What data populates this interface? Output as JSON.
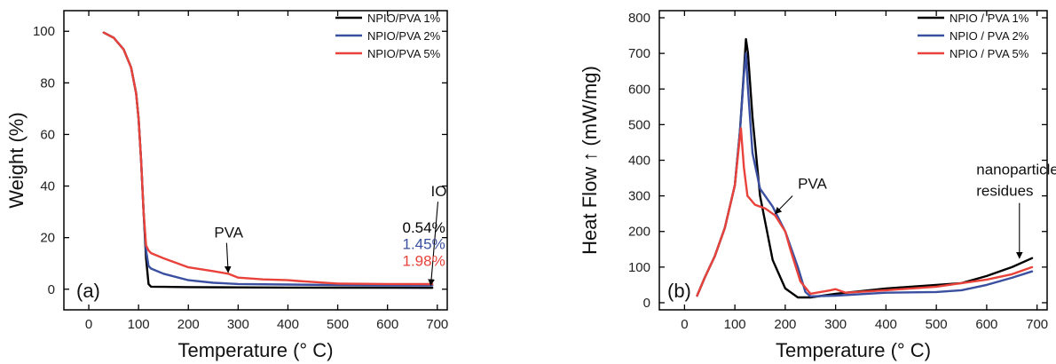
{
  "chart_data": [
    {
      "type": "line",
      "panel_label": "(a)",
      "xlabel": "Temperature (° C)",
      "ylabel": "Weight (%)",
      "xlim": [
        -50,
        720
      ],
      "ylim": [
        -8,
        108
      ],
      "xticks": [
        0,
        100,
        200,
        300,
        400,
        500,
        600,
        700
      ],
      "yticks": [
        0,
        20,
        40,
        60,
        80,
        100
      ],
      "legend_position": "top-right",
      "series": [
        {
          "name": "NPIO/PVA 1%",
          "color": "#000000",
          "x": [
            30,
            50,
            70,
            85,
            95,
            100,
            105,
            110,
            115,
            120,
            125,
            150,
            200,
            300,
            400,
            500,
            600,
            690
          ],
          "y": [
            99.5,
            97.5,
            93,
            86,
            76,
            66,
            50,
            30,
            12,
            2,
            1,
            0.9,
            0.8,
            0.7,
            0.65,
            0.6,
            0.56,
            0.54
          ]
        },
        {
          "name": "NPIO/PVA 2%",
          "color": "#3a4fa0",
          "x": [
            30,
            50,
            70,
            85,
            95,
            100,
            105,
            110,
            115,
            120,
            125,
            150,
            200,
            250,
            300,
            400,
            500,
            600,
            690
          ],
          "y": [
            99.5,
            97.5,
            93,
            86,
            76,
            66,
            50,
            30,
            15,
            9,
            8,
            6,
            3.5,
            2.5,
            2,
            1.8,
            1.6,
            1.5,
            1.45
          ]
        },
        {
          "name": "NPIO/PVA 5%",
          "color": "#e8423a",
          "x": [
            30,
            50,
            70,
            85,
            95,
            100,
            105,
            110,
            115,
            120,
            125,
            150,
            200,
            250,
            280,
            300,
            350,
            400,
            420,
            450,
            500,
            600,
            690
          ],
          "y": [
            99.5,
            97.5,
            93,
            86,
            76,
            66,
            50,
            30,
            17,
            15,
            14,
            12,
            8.5,
            7,
            6,
            4.5,
            3.8,
            3.5,
            3.2,
            2.8,
            2.2,
            2.0,
            1.98
          ]
        }
      ],
      "annotations": [
        {
          "text": "PVA",
          "x": 284,
          "y": 20,
          "arrow_to": [
            280,
            6.5
          ]
        },
        {
          "text": "IO",
          "x": 687,
          "y": 36,
          "arrow_to": [
            687,
            1.5
          ]
        },
        {
          "text": "0.54%",
          "x": 630,
          "y": 22,
          "color": "#000000"
        },
        {
          "text": "1.45%",
          "x": 630,
          "y": 15.5,
          "color": "#3a4fa0"
        },
        {
          "text": "1.98%",
          "x": 630,
          "y": 9,
          "color": "#e8423a"
        }
      ]
    },
    {
      "type": "line",
      "panel_label": "(b)",
      "xlabel": "Temperature (° C)",
      "ylabel": "Heat Flow ↑ (mW/mg)",
      "xlim": [
        -50,
        720
      ],
      "ylim": [
        -20,
        820
      ],
      "xticks": [
        0,
        100,
        200,
        300,
        400,
        500,
        600,
        700
      ],
      "yticks": [
        0,
        100,
        200,
        300,
        400,
        500,
        600,
        700,
        800
      ],
      "legend_position": "top-right",
      "series": [
        {
          "name": "NPIO / PVA 1%",
          "color": "#000000",
          "x": [
            25,
            40,
            60,
            80,
            100,
            110,
            118,
            122,
            126,
            135,
            150,
            175,
            200,
            225,
            250,
            300,
            400,
            500,
            550,
            600,
            650,
            690
          ],
          "y": [
            20,
            70,
            130,
            210,
            330,
            480,
            650,
            740,
            700,
            520,
            300,
            120,
            40,
            15,
            15,
            25,
            40,
            50,
            55,
            75,
            100,
            125
          ]
        },
        {
          "name": "NPIO / PVA 2%",
          "color": "#3a4fa0",
          "x": [
            25,
            40,
            60,
            80,
            100,
            110,
            118,
            122,
            126,
            135,
            150,
            175,
            200,
            225,
            240,
            250,
            300,
            400,
            500,
            550,
            600,
            650,
            690
          ],
          "y": [
            20,
            70,
            130,
            210,
            330,
            480,
            640,
            700,
            600,
            420,
            320,
            270,
            200,
            100,
            30,
            18,
            20,
            28,
            30,
            35,
            50,
            70,
            88
          ]
        },
        {
          "name": "NPIO / PVA 5%",
          "color": "#e8423a",
          "x": [
            25,
            40,
            60,
            80,
            100,
            108,
            112,
            118,
            125,
            140,
            160,
            180,
            200,
            210,
            230,
            250,
            270,
            290,
            300,
            320,
            400,
            500,
            600,
            650,
            690
          ],
          "y": [
            20,
            70,
            130,
            210,
            330,
            440,
            490,
            380,
            300,
            275,
            265,
            245,
            200,
            150,
            60,
            25,
            30,
            35,
            38,
            28,
            35,
            45,
            65,
            80,
            100
          ]
        }
      ],
      "annotations": [
        {
          "text": "PVA",
          "x": 225,
          "y": 320,
          "arrow_to": [
            180,
            250
          ]
        },
        {
          "text": "nanoparticles",
          "x": 650,
          "y": 360
        },
        {
          "text": "residues",
          "x": 650,
          "y": 300,
          "arrow_to": [
            665,
            125
          ]
        }
      ]
    }
  ]
}
